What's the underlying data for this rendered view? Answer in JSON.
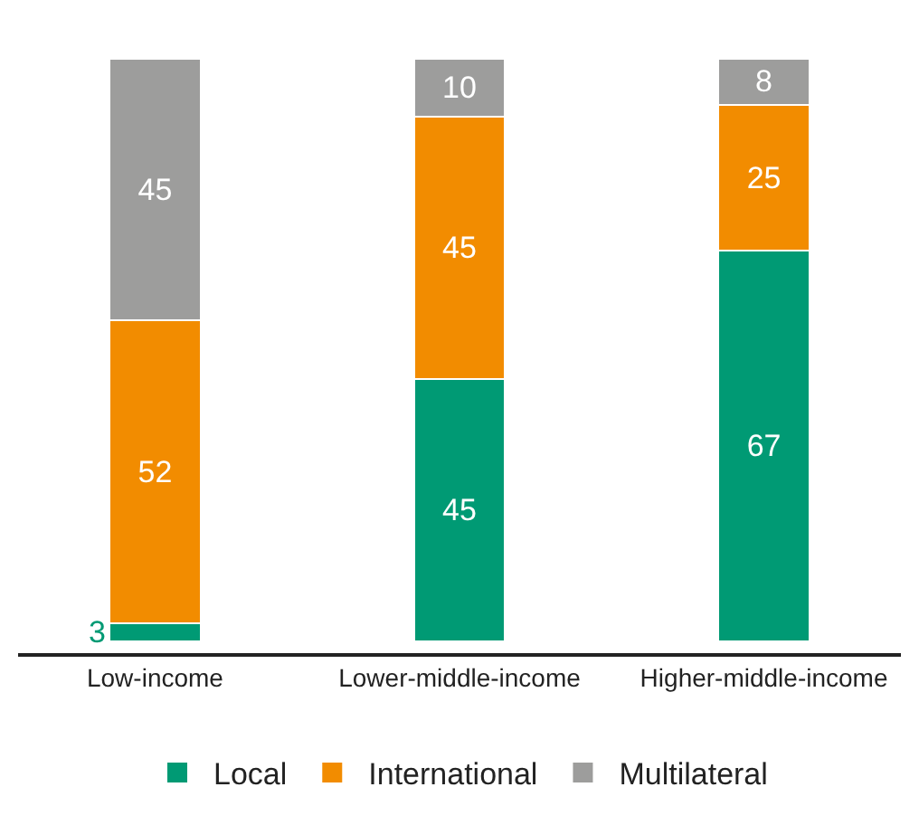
{
  "chart_data": {
    "type": "bar",
    "stacked": true,
    "categories": [
      "Low-income",
      "Lower-middle-income",
      "Higher-middle-income"
    ],
    "series": [
      {
        "name": "Local",
        "color": "#009a74",
        "values": [
          3,
          45,
          67
        ]
      },
      {
        "name": "International",
        "color": "#f28c00",
        "values": [
          52,
          45,
          25
        ]
      },
      {
        "name": "Multilateral",
        "color": "#9d9d9c",
        "values": [
          45,
          10,
          8
        ]
      }
    ],
    "data_labels": true,
    "legend": "bottom"
  }
}
